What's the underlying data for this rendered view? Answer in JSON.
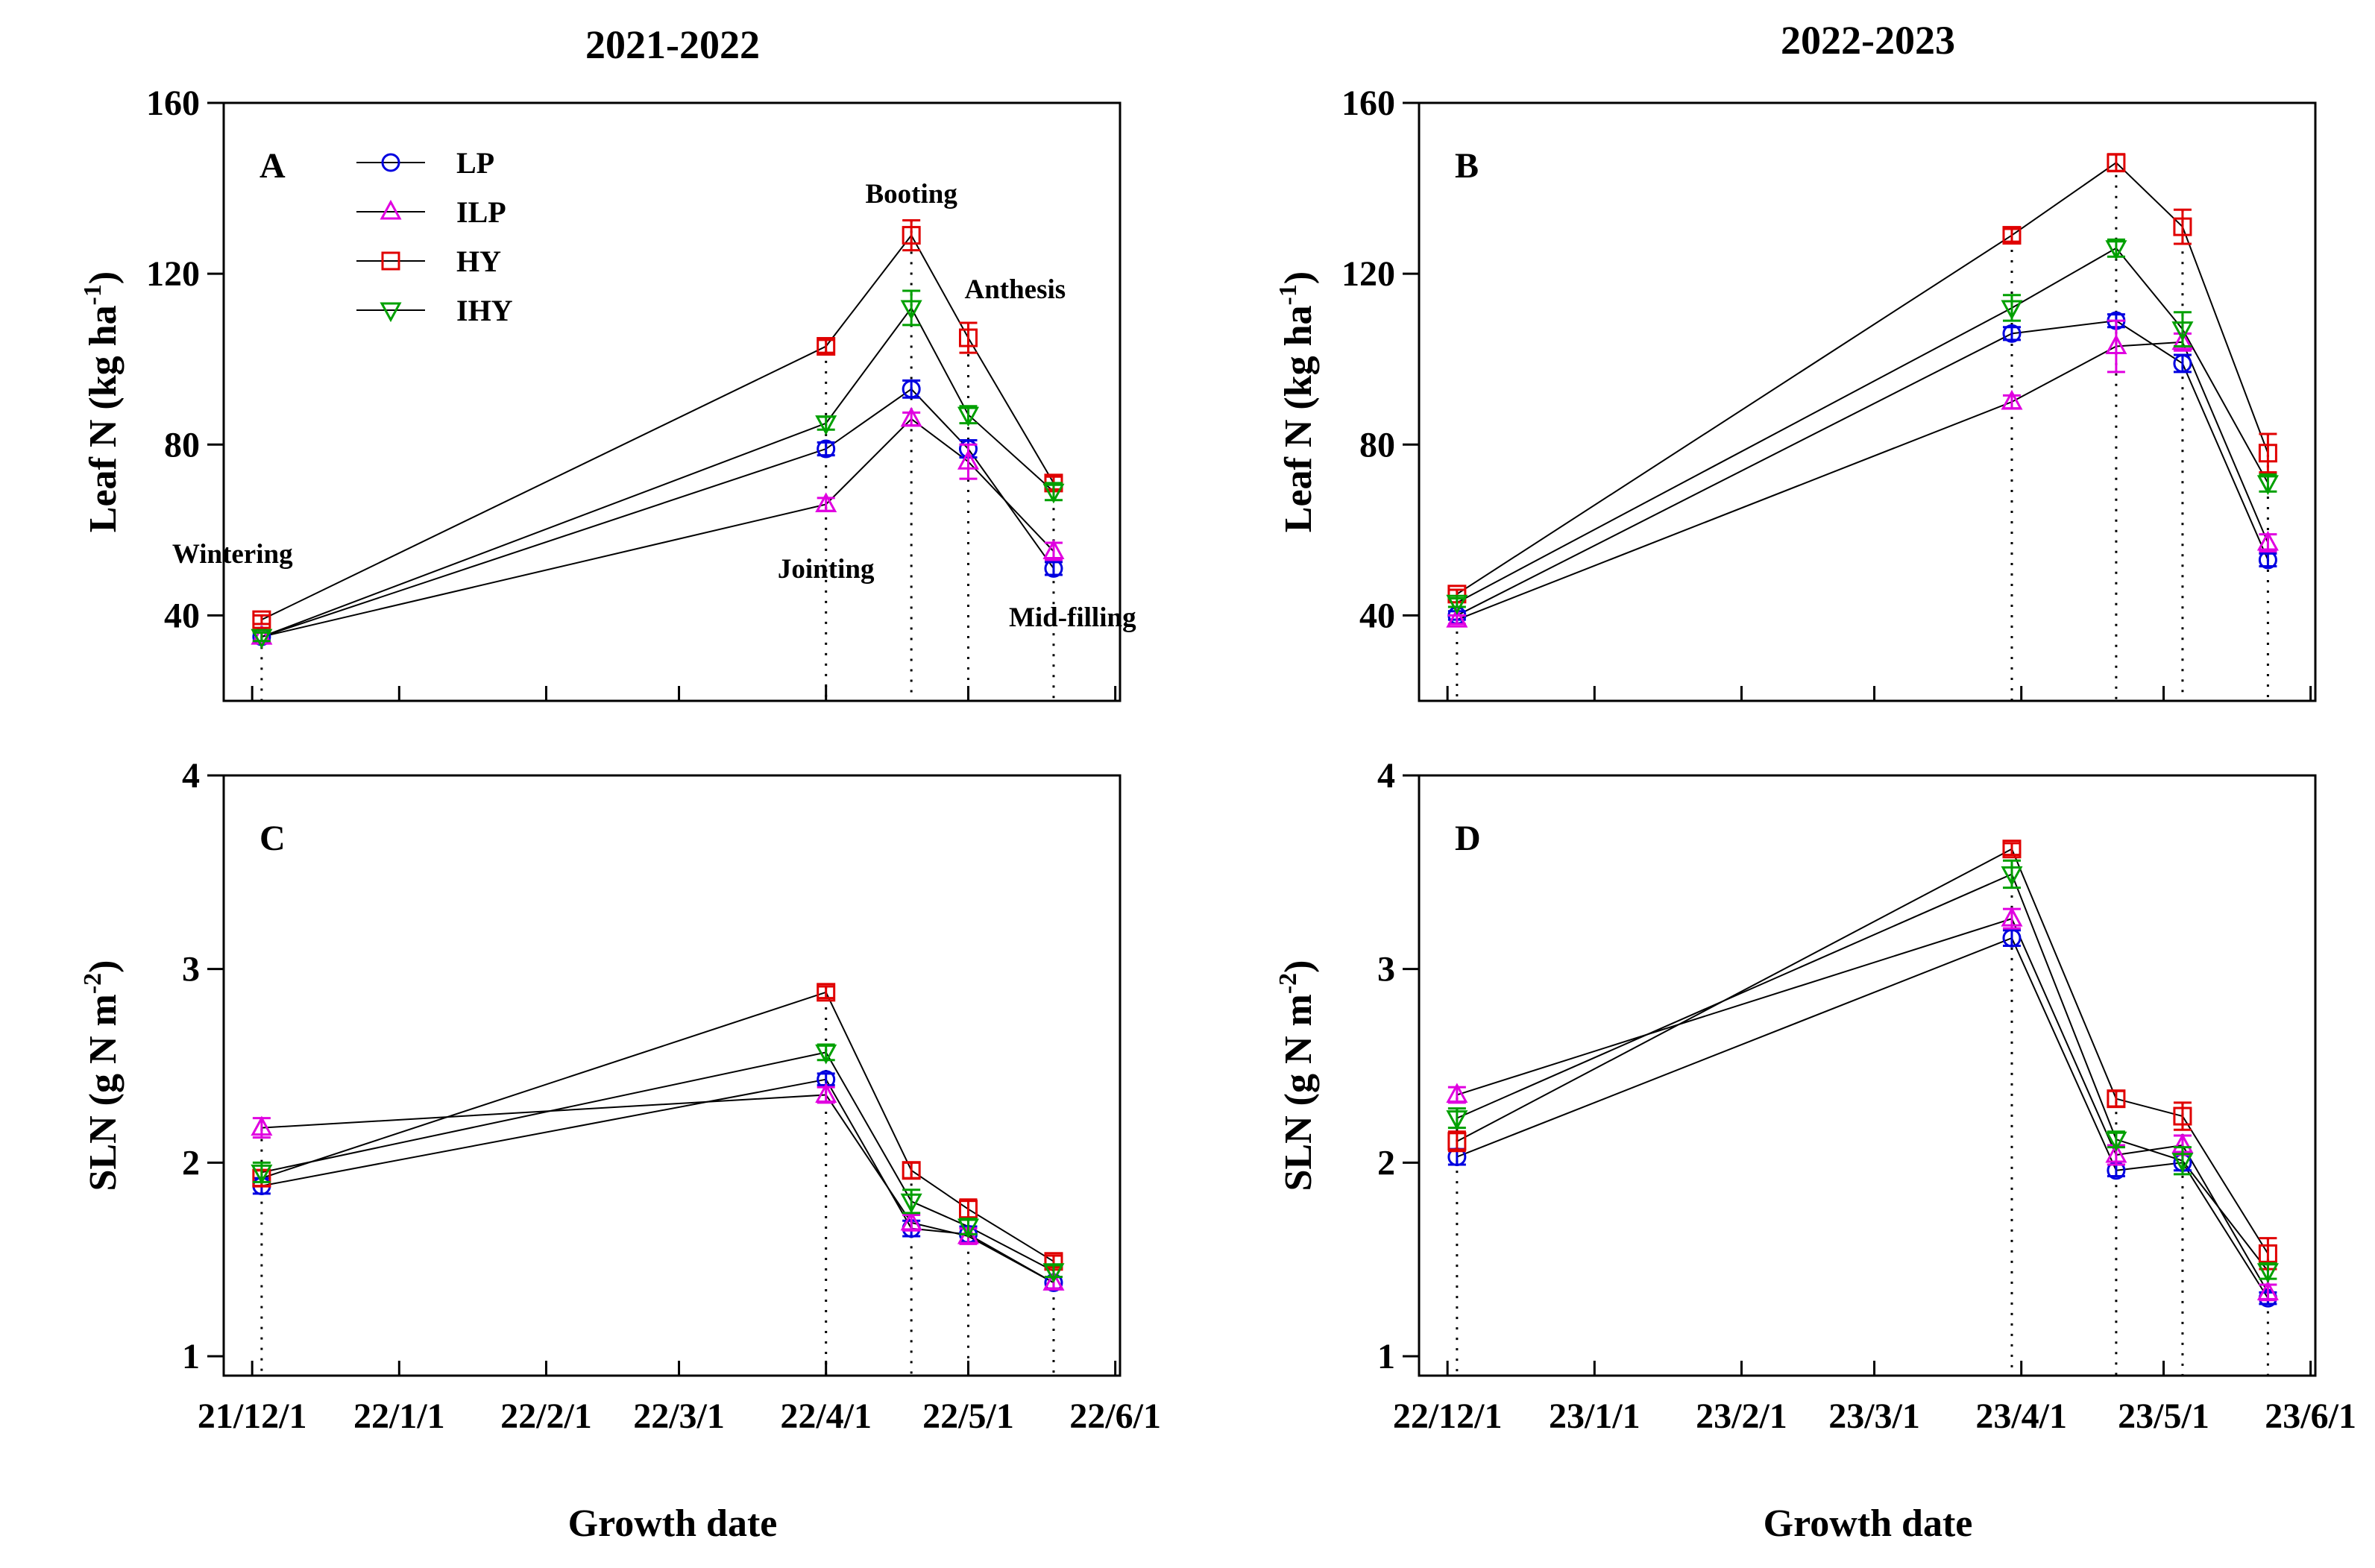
{
  "colors": {
    "LP": "#0000e0",
    "ILP": "#e000e0",
    "HY": "#e00000",
    "IHY": "#00a000",
    "line": "#000000"
  },
  "legend": [
    "LP",
    "ILP",
    "HY",
    "IHY"
  ],
  "series_names": [
    "LP",
    "ILP",
    "HY",
    "IHY"
  ],
  "markers": {
    "LP": "circle",
    "ILP": "triangle-up",
    "HY": "square",
    "IHY": "triangle-down"
  },
  "xlabel": "Growth date",
  "stages": [
    "Wintering",
    "Jointing",
    "Booting",
    "Anthesis",
    "Mid-filling"
  ],
  "chart_data": [
    {
      "id": "A",
      "type": "line",
      "column_title": "2021-2022",
      "ylabel": "Leaf N (kg ha",
      "ylabel_sup": "-1",
      "ylabel_end": ")",
      "ylim": [
        20,
        160
      ],
      "yticks": [
        "160",
        "120",
        "80",
        "40"
      ],
      "ytick_values": [
        160,
        120,
        80,
        40
      ],
      "xlim": [
        -6,
        183
      ],
      "xtick_labels": [
        "21/12/1",
        "22/1/1",
        "22/2/1",
        "22/3/1",
        "22/4/1",
        "22/5/1",
        "22/6/1"
      ],
      "xtick_days": [
        0,
        31,
        62,
        90,
        121,
        151,
        182
      ],
      "x_days": [
        2,
        121,
        139,
        151,
        169
      ],
      "series": [
        {
          "name": "LP",
          "values": [
            35,
            79,
            93,
            79,
            51
          ],
          "errors": [
            1.0,
            1.5,
            2.0,
            2.0,
            1.5
          ]
        },
        {
          "name": "ILP",
          "values": [
            35,
            66,
            86,
            76,
            55
          ],
          "errors": [
            1.0,
            1.5,
            1.5,
            4.0,
            2.0
          ]
        },
        {
          "name": "HY",
          "values": [
            39,
            103,
            129,
            105,
            71
          ],
          "errors": [
            1.0,
            1.5,
            3.5,
            3.5,
            1.5
          ]
        },
        {
          "name": "IHY",
          "values": [
            35,
            85,
            112,
            87,
            69
          ],
          "errors": [
            1.0,
            1.5,
            4.0,
            2.0,
            2.0
          ]
        }
      ],
      "stage_labels": [
        "Wintering",
        "Jointing",
        "Booting",
        "Anthesis",
        "Mid-filling"
      ],
      "show_legend": true
    },
    {
      "id": "B",
      "type": "line",
      "column_title": "2022-2023",
      "ylabel": "Leaf N (kg ha",
      "ylabel_sup": "-1",
      "ylabel_end": ")",
      "ylim": [
        20,
        160
      ],
      "yticks": [
        "160",
        "120",
        "80",
        "40"
      ],
      "ytick_values": [
        160,
        120,
        80,
        40
      ],
      "xlim": [
        -6,
        183
      ],
      "xtick_labels": [
        "22/12/1",
        "23/1/1",
        "23/2/1",
        "23/3/1",
        "23/4/1",
        "23/5/1",
        "23/6/1"
      ],
      "xtick_days": [
        0,
        31,
        62,
        90,
        121,
        151,
        182
      ],
      "x_days": [
        2,
        119,
        141,
        155,
        173
      ],
      "series": [
        {
          "name": "LP",
          "values": [
            40,
            106,
            109,
            99,
            53
          ],
          "errors": [
            1.0,
            1.5,
            1.5,
            2.0,
            1.5
          ]
        },
        {
          "name": "ILP",
          "values": [
            39,
            90,
            103,
            104,
            57
          ],
          "errors": [
            1.0,
            1.5,
            6.0,
            2.0,
            2.0
          ]
        },
        {
          "name": "HY",
          "values": [
            45,
            129,
            146,
            131,
            78
          ],
          "errors": [
            1.0,
            1.5,
            2.0,
            4.0,
            4.5
          ]
        },
        {
          "name": "IHY",
          "values": [
            43,
            112,
            126,
            107,
            71
          ],
          "errors": [
            1.0,
            3.0,
            2.0,
            4.0,
            2.0
          ]
        }
      ],
      "stage_labels": [],
      "show_legend": false
    },
    {
      "id": "C",
      "type": "line",
      "ylabel": "SLN (g N m",
      "ylabel_sup": "-2",
      "ylabel_end": ")",
      "ylim": [
        0.9,
        4.0
      ],
      "yticks": [
        "4",
        "3",
        "2",
        "1"
      ],
      "ytick_values": [
        4,
        3,
        2,
        1
      ],
      "xlim": [
        -6,
        183
      ],
      "xtick_labels": [
        "21/12/1",
        "22/1/1",
        "22/2/1",
        "22/3/1",
        "22/4/1",
        "22/5/1",
        "22/6/1"
      ],
      "xtick_days": [
        0,
        31,
        62,
        90,
        121,
        151,
        182
      ],
      "x_days": [
        2,
        121,
        139,
        151,
        169
      ],
      "series": [
        {
          "name": "LP",
          "values": [
            1.88,
            2.43,
            1.66,
            1.63,
            1.38
          ],
          "errors": [
            0.04,
            0.03,
            0.04,
            0.04,
            0.03
          ]
        },
        {
          "name": "ILP",
          "values": [
            2.18,
            2.35,
            1.69,
            1.62,
            1.38
          ],
          "errors": [
            0.05,
            0.04,
            0.04,
            0.04,
            0.03
          ]
        },
        {
          "name": "HY",
          "values": [
            1.92,
            2.88,
            1.96,
            1.76,
            1.49
          ],
          "errors": [
            0.04,
            0.03,
            0.04,
            0.05,
            0.03
          ]
        },
        {
          "name": "IHY",
          "values": [
            1.95,
            2.57,
            1.8,
            1.67,
            1.44
          ],
          "errors": [
            0.05,
            0.04,
            0.06,
            0.04,
            0.03
          ]
        }
      ],
      "stage_labels": [],
      "show_legend": false
    },
    {
      "id": "D",
      "type": "line",
      "ylabel": "SLN (g N m",
      "ylabel_sup": "-2",
      "ylabel_end": ")",
      "ylim": [
        0.9,
        4.0
      ],
      "yticks": [
        "4",
        "3",
        "2",
        "1"
      ],
      "ytick_values": [
        4,
        3,
        2,
        1
      ],
      "xlim": [
        -6,
        183
      ],
      "xtick_labels": [
        "22/12/1",
        "23/1/1",
        "23/2/1",
        "23/3/1",
        "23/4/1",
        "23/5/1",
        "23/6/1"
      ],
      "xtick_days": [
        0,
        31,
        62,
        90,
        121,
        151,
        182
      ],
      "x_days": [
        2,
        119,
        141,
        155,
        173
      ],
      "series": [
        {
          "name": "LP",
          "values": [
            2.03,
            3.16,
            1.96,
            2.0,
            1.3
          ],
          "errors": [
            0.04,
            0.04,
            0.03,
            0.04,
            0.03
          ]
        },
        {
          "name": "ILP",
          "values": [
            2.35,
            3.26,
            2.04,
            2.09,
            1.33
          ],
          "errors": [
            0.04,
            0.05,
            0.05,
            0.05,
            0.04
          ]
        },
        {
          "name": "HY",
          "values": [
            2.11,
            3.62,
            2.33,
            2.24,
            1.53
          ],
          "errors": [
            0.05,
            0.03,
            0.04,
            0.07,
            0.08
          ]
        },
        {
          "name": "IHY",
          "values": [
            2.23,
            3.49,
            2.12,
            2.01,
            1.44
          ],
          "errors": [
            0.05,
            0.07,
            0.04,
            0.07,
            0.04
          ]
        }
      ],
      "stage_labels": [],
      "show_legend": false
    }
  ]
}
